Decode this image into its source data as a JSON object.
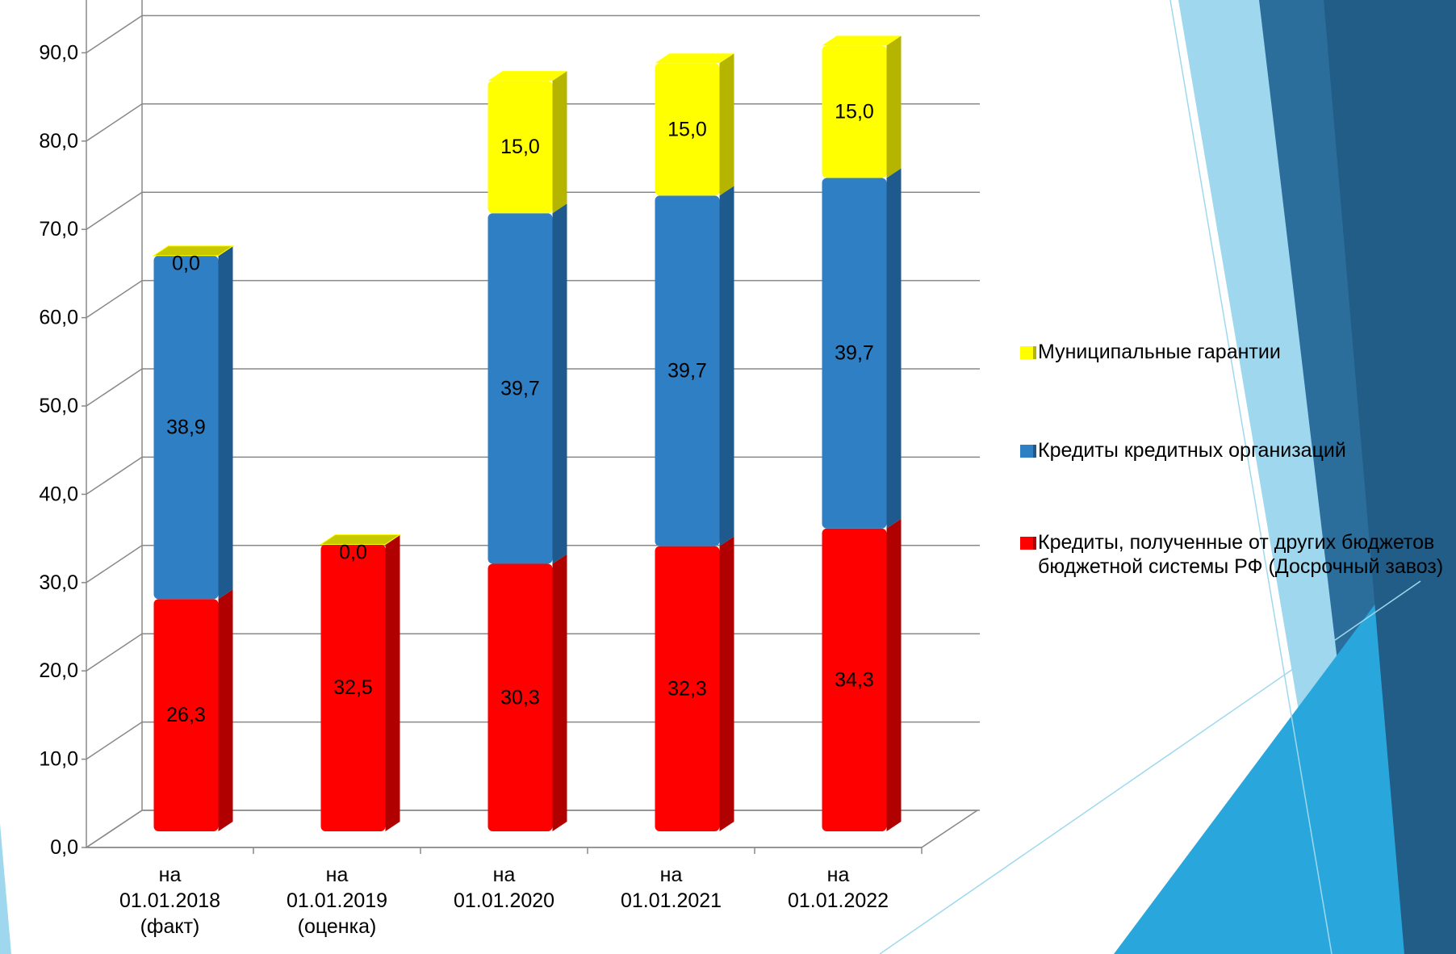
{
  "chart_data": {
    "type": "bar3d_stacked",
    "categories": [
      [
        "на",
        "01.01.2018",
        "(факт)"
      ],
      [
        "на",
        "01.01.2019",
        "(оценка)"
      ],
      [
        "на",
        "01.01.2020"
      ],
      [
        "на",
        "01.01.2021"
      ],
      [
        "на",
        "01.01.2022"
      ]
    ],
    "series": [
      {
        "name": "Кредиты, полученные от других бюджетов бюджетной системы РФ (Досрочный завоз)",
        "color": "#ff0000",
        "side_color": "#b00000",
        "values": [
          26.3,
          32.5,
          30.3,
          32.3,
          34.3
        ],
        "value_labels": [
          "26,3",
          "32,5",
          "30,3",
          "32,3",
          "34,3"
        ]
      },
      {
        "name": "Кредиты кредитных организаций",
        "color": "#2e7fc4",
        "side_color": "#1f5a8e",
        "values": [
          38.9,
          null,
          39.7,
          39.7,
          39.7
        ],
        "value_labels": [
          "38,9",
          null,
          "39,7",
          "39,7",
          "39,7"
        ]
      },
      {
        "name": "Муниципальные гарантии",
        "color": "#ffff00",
        "side_color": "#b5b500",
        "values": [
          0,
          0,
          15,
          15,
          15
        ],
        "value_labels": [
          "0,0",
          "0,0",
          "15,0",
          "15,0",
          "15,0"
        ]
      }
    ],
    "ylim": [
      0,
      100
    ],
    "yticks": [
      {
        "value": 0,
        "label": "0,0"
      },
      {
        "value": 10,
        "label": "10,0"
      },
      {
        "value": 20,
        "label": "20,0"
      },
      {
        "value": 30,
        "label": "30,0"
      },
      {
        "value": 40,
        "label": "40,0"
      },
      {
        "value": 50,
        "label": "50,0"
      },
      {
        "value": 60,
        "label": "60,0"
      },
      {
        "value": 70,
        "label": "70,0"
      },
      {
        "value": 80,
        "label": "80,0"
      },
      {
        "value": 90,
        "label": "90,0"
      }
    ],
    "grid": true,
    "legend": "right"
  }
}
